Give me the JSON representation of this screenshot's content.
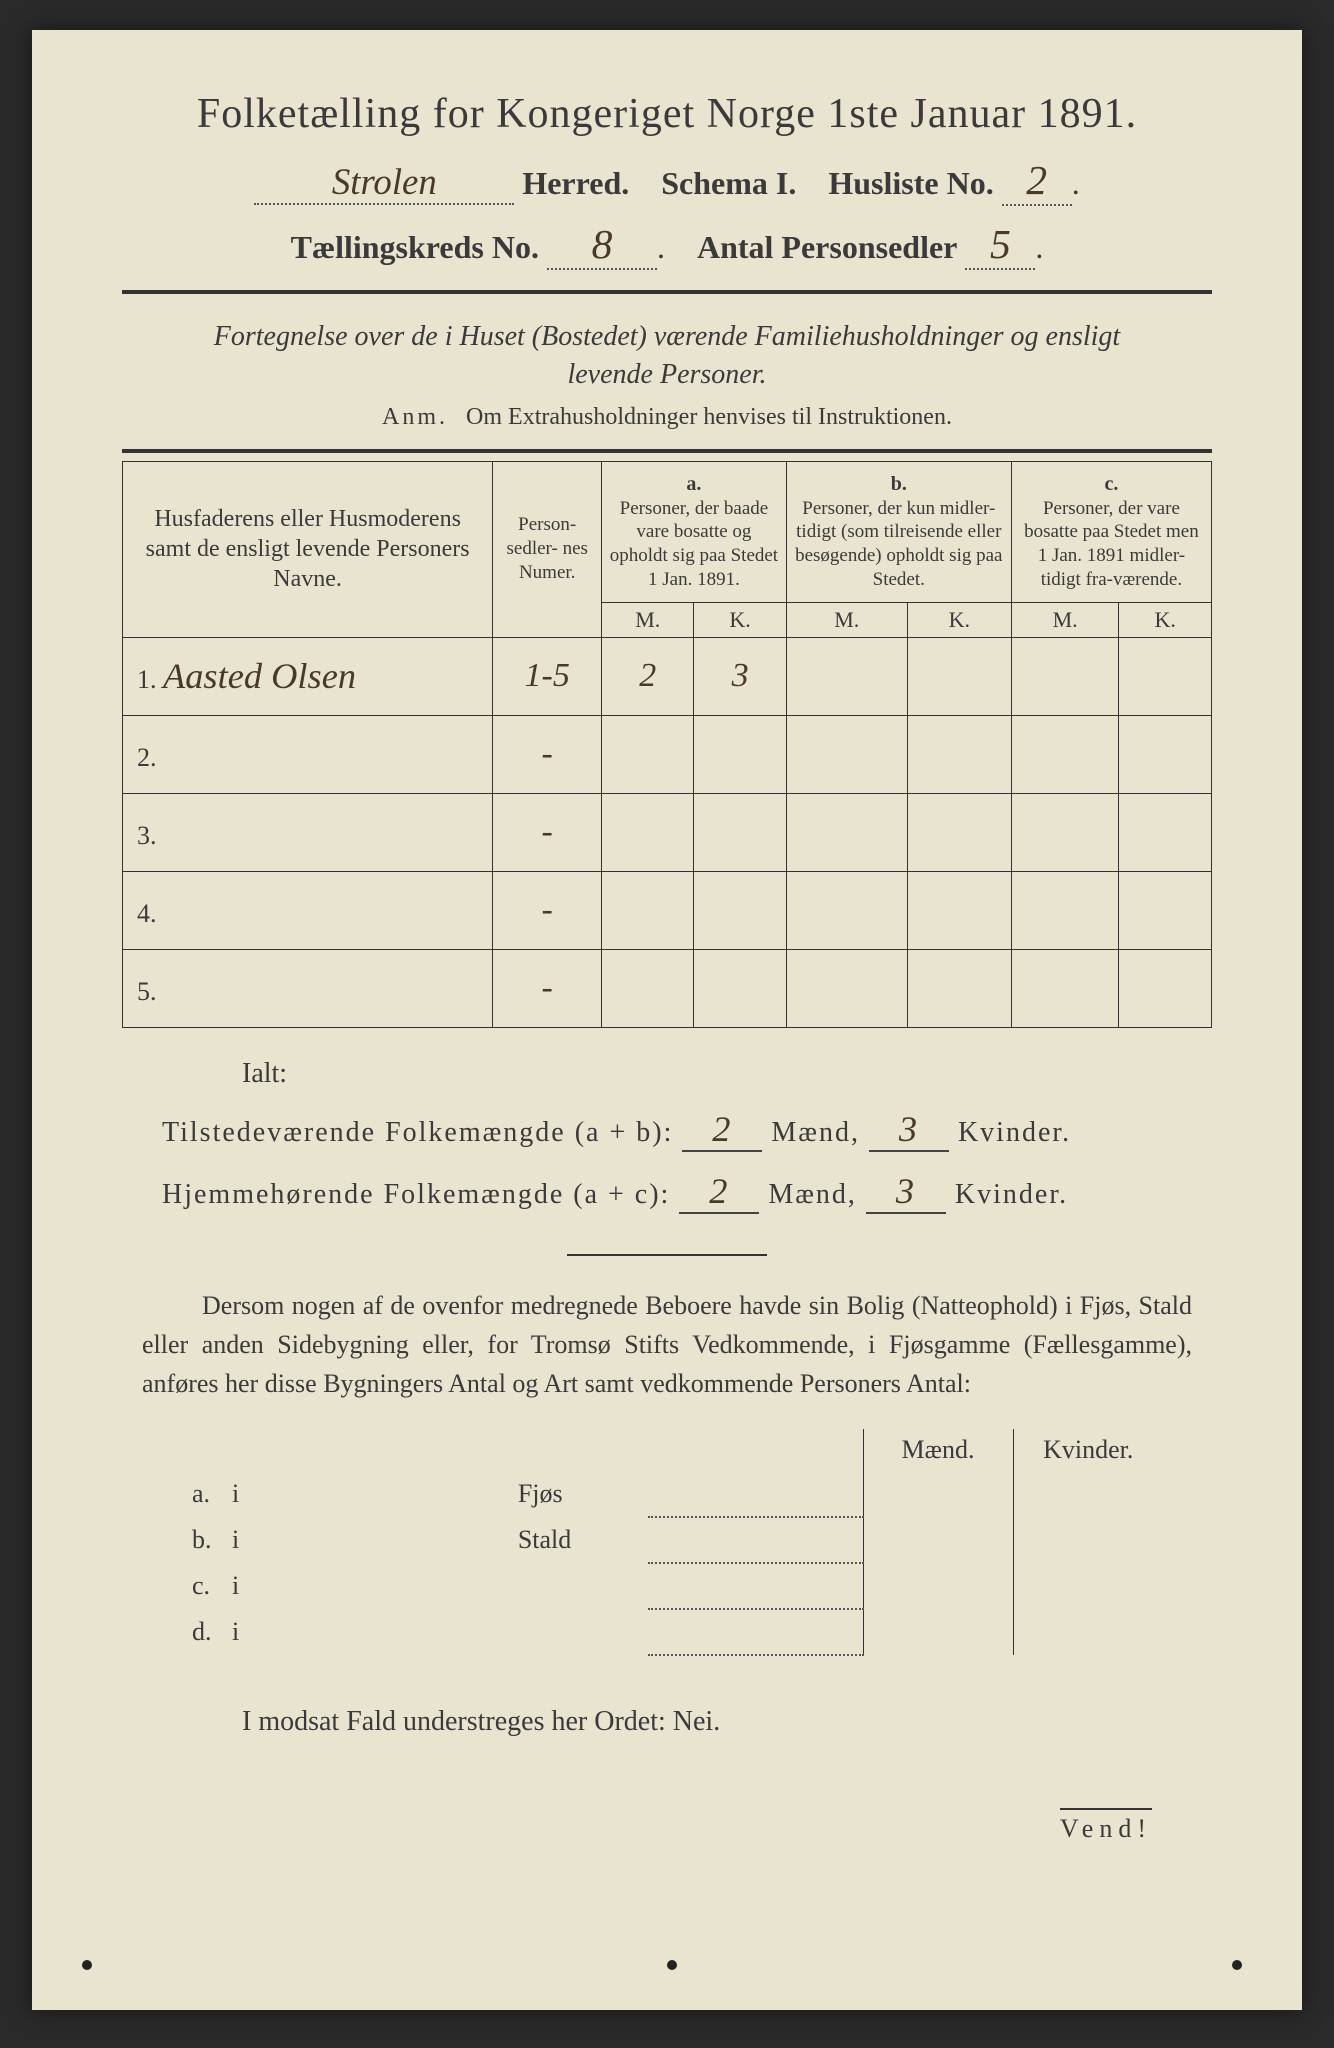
{
  "document": {
    "background_color": "#e8e4d0",
    "text_color": "#3a3a3a",
    "handwriting_color": "#4a3828",
    "border_color": "#333333"
  },
  "header": {
    "title": "Folketælling for Kongeriget Norge 1ste Januar 1891.",
    "herred_value": "Strolen",
    "herred_label": "Herred.",
    "schema_label": "Schema I.",
    "husliste_label": "Husliste No.",
    "husliste_value": "2",
    "kreds_label": "Tællingskreds No.",
    "kreds_value": "8",
    "antal_label": "Antal Personsedler",
    "antal_value": "5"
  },
  "subtitle": {
    "line1": "Fortegnelse over de i Huset (Bostedet) værende Familiehusholdninger og ensligt",
    "line2": "levende Personer.",
    "anm_label": "Anm.",
    "anm_text": "Om Extrahusholdninger henvises til Instruktionen."
  },
  "table": {
    "col_name": "Husfaderens eller Husmoderens samt de ensligt levende Personers Navne.",
    "col_numer": "Person-\nsedler-\nnes\nNumer.",
    "col_a_label": "a.",
    "col_a_text": "Personer, der baade vare bosatte og opholdt sig paa Stedet 1 Jan. 1891.",
    "col_b_label": "b.",
    "col_b_text": "Personer, der kun midler-tidigt (som tilreisende eller besøgende) opholdt sig paa Stedet.",
    "col_c_label": "c.",
    "col_c_text": "Personer, der vare bosatte paa Stedet men 1 Jan. 1891 midler-tidigt fra-værende.",
    "m": "M.",
    "k": "K.",
    "rows": [
      {
        "n": "1.",
        "name": "Aasted Olsen",
        "numer": "1-5",
        "am": "2",
        "ak": "3",
        "bm": "",
        "bk": "",
        "cm": "",
        "ck": ""
      },
      {
        "n": "2.",
        "name": "",
        "numer": "-",
        "am": "",
        "ak": "",
        "bm": "",
        "bk": "",
        "cm": "",
        "ck": ""
      },
      {
        "n": "3.",
        "name": "",
        "numer": "-",
        "am": "",
        "ak": "",
        "bm": "",
        "bk": "",
        "cm": "",
        "ck": ""
      },
      {
        "n": "4.",
        "name": "",
        "numer": "-",
        "am": "",
        "ak": "",
        "bm": "",
        "bk": "",
        "cm": "",
        "ck": ""
      },
      {
        "n": "5.",
        "name": "",
        "numer": "-",
        "am": "",
        "ak": "",
        "bm": "",
        "bk": "",
        "cm": "",
        "ck": ""
      }
    ]
  },
  "totals": {
    "ialt": "Ialt:",
    "row1_label": "Tilstedeværende Folkemængde (a + b):",
    "row1_m": "2",
    "row1_m_label": "Mænd,",
    "row1_k": "3",
    "row1_k_label": "Kvinder.",
    "row2_label": "Hjemmehørende Folkemængde (a + c):",
    "row2_m": "2",
    "row2_m_label": "Mænd,",
    "row2_k": "3",
    "row2_k_label": "Kvinder."
  },
  "lower_para": "Dersom nogen af de ovenfor medregnede Beboere havde sin Bolig (Natteophold) i Fjøs, Stald eller anden Sidebygning eller, for Tromsø Stifts Vedkommende, i Fjøsgamme (Fællesgamme), anføres her disse Bygningers Antal og Art samt vedkommende Personers Antal:",
  "lower_table": {
    "maend": "Mænd.",
    "kvinder": "Kvinder.",
    "rows": [
      {
        "lead": "a.",
        "i": "i",
        "label": "Fjøs"
      },
      {
        "lead": "b.",
        "i": "i",
        "label": "Stald"
      },
      {
        "lead": "c.",
        "i": "i",
        "label": ""
      },
      {
        "lead": "d.",
        "i": "i",
        "label": ""
      }
    ]
  },
  "nei_line": "I modsat Fald understreges her Ordet: Nei.",
  "vend": "Vend!"
}
